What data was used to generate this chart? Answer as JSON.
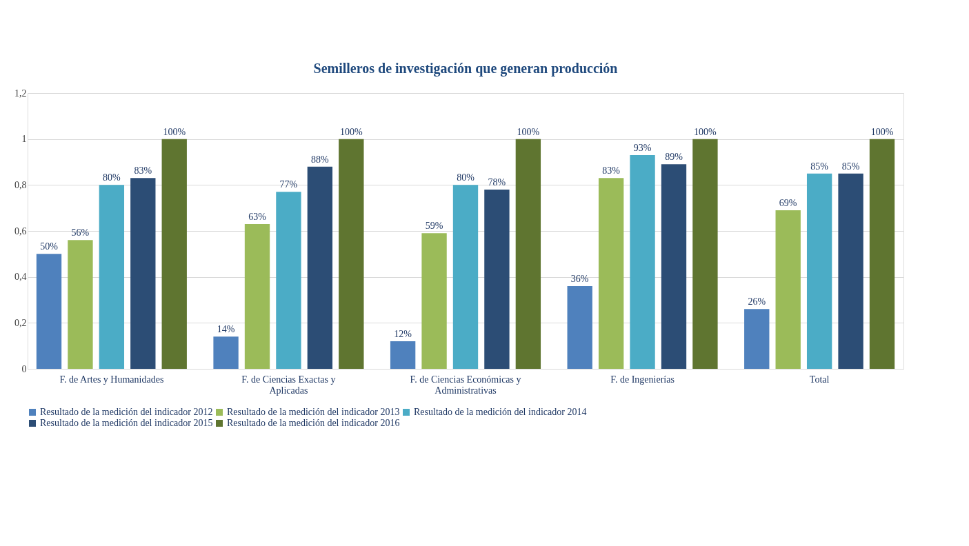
{
  "chart_data": {
    "type": "bar",
    "title": "Semilleros de investigación que generan producción",
    "categories": [
      "F. de Artes y Humanidades",
      "F. de Ciencias Exactas y Aplicadas",
      "F. de Ciencias Económicas y Administrativas",
      "F. de Ingenierías",
      "Total"
    ],
    "series": [
      {
        "name": "Resultado de la medición del indicador 2012",
        "color": "#4f81bd",
        "values": [
          0.5,
          0.14,
          0.12,
          0.36,
          0.26
        ],
        "value_labels": [
          "50%",
          "14%",
          "12%",
          "36%",
          "26%"
        ]
      },
      {
        "name": "Resultado de la medición del indicador 2013",
        "color": "#9bbb59",
        "values": [
          0.56,
          0.63,
          0.59,
          0.83,
          0.69
        ],
        "value_labels": [
          "56%",
          "63%",
          "59%",
          "83%",
          "69%"
        ]
      },
      {
        "name": "Resultado de la medición del indicador 2014",
        "color": "#4bacc6",
        "values": [
          0.8,
          0.77,
          0.8,
          0.93,
          0.85
        ],
        "value_labels": [
          "80%",
          "77%",
          "80%",
          "93%",
          "85%"
        ]
      },
      {
        "name": "Resultado de la medición del indicador 2015",
        "color": "#2c4d75",
        "values": [
          0.83,
          0.88,
          0.78,
          0.89,
          0.85
        ],
        "value_labels": [
          "83%",
          "88%",
          "78%",
          "89%",
          "85%"
        ]
      },
      {
        "name": "Resultado de la medición del indicador 2016",
        "color": "#5f7530",
        "values": [
          1,
          1,
          1,
          1,
          1
        ],
        "value_labels": [
          "100%",
          "100%",
          "100%",
          "100%",
          "100%"
        ]
      }
    ],
    "ylim": [
      0,
      1.2
    ],
    "yticks": [
      0,
      {
        "value": 0.2,
        "label": "0,2"
      },
      {
        "value": 0.4,
        "label": "0,4"
      },
      {
        "value": 0.6,
        "label": "0,6"
      },
      {
        "value": 0.8,
        "label": "0,8"
      },
      1,
      {
        "value": 1.2,
        "label": "1,2"
      }
    ],
    "grid": "y",
    "legend": "bottom"
  }
}
